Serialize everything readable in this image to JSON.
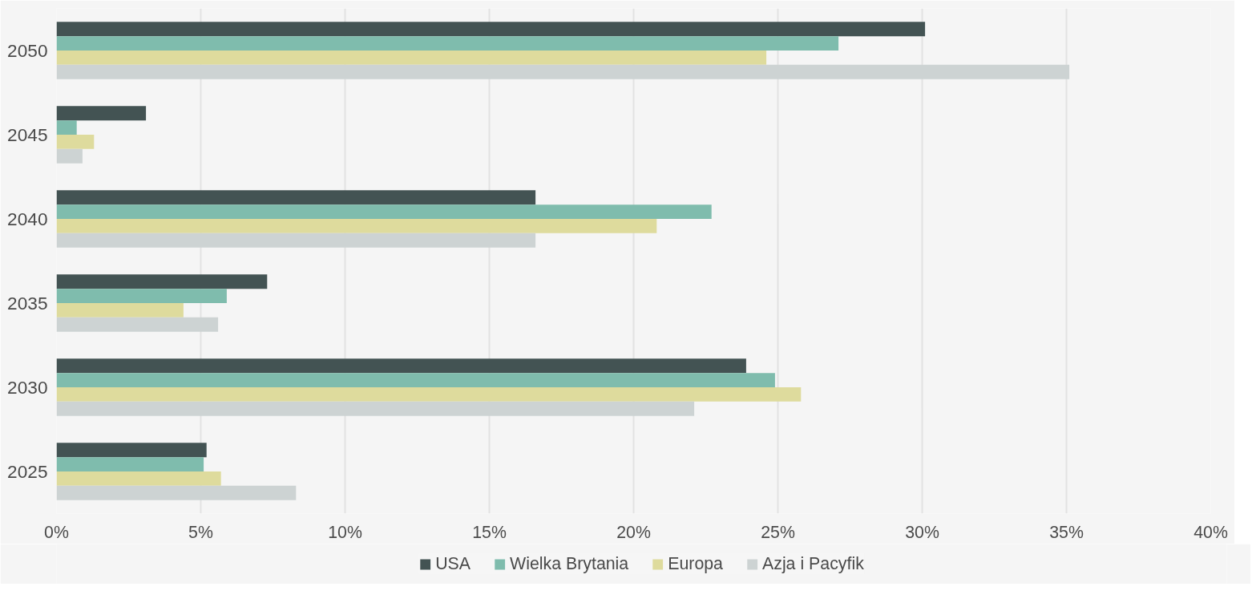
{
  "chart_data": {
    "type": "bar",
    "orientation": "horizontal",
    "categories": [
      "2050",
      "2045",
      "2040",
      "2035",
      "2030",
      "2025"
    ],
    "series": [
      {
        "name": "USA",
        "color": "#435353",
        "values": [
          30.1,
          3.1,
          16.6,
          7.3,
          23.9,
          5.2
        ]
      },
      {
        "name": "Wielka Brytania",
        "color": "#7fbcad",
        "values": [
          27.1,
          0.7,
          22.7,
          5.9,
          24.9,
          5.1
        ]
      },
      {
        "name": "Europa",
        "color": "#dedb9d",
        "values": [
          24.6,
          1.3,
          20.8,
          4.4,
          25.8,
          5.7
        ]
      },
      {
        "name": "Azja i Pacyfik",
        "color": "#cdd3d3",
        "values": [
          35.1,
          0.9,
          16.6,
          5.6,
          22.1,
          8.3
        ]
      }
    ],
    "xlim": [
      0,
      40
    ],
    "xticks": [
      {
        "value": 0,
        "label": "0%"
      },
      {
        "value": 5,
        "label": "5%"
      },
      {
        "value": 10,
        "label": "10%"
      },
      {
        "value": 15,
        "label": "15%"
      },
      {
        "value": 20,
        "label": "20%"
      },
      {
        "value": 25,
        "label": "25%"
      },
      {
        "value": 30,
        "label": "30%"
      },
      {
        "value": 35,
        "label": "35%"
      },
      {
        "value": 40,
        "label": "40%"
      }
    ],
    "grid": "x",
    "legend": "bottom"
  }
}
